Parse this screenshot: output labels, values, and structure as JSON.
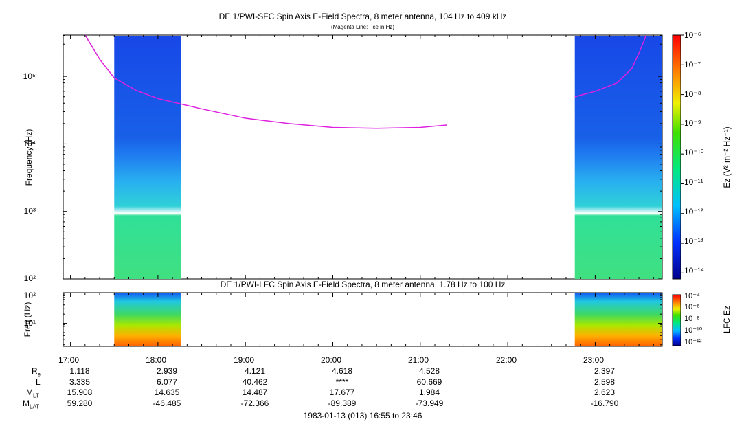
{
  "panel_top": {
    "title": "DE 1/PWI-SFC  Spin Axis E-Field Spectra, 8 meter antenna, 104 Hz to 409 kHz",
    "subtitle": "(Magenta Line: Fce in Hz)",
    "ylabel": "Frequency (Hz)",
    "yticks": [
      "10²",
      "10³",
      "10⁴",
      "10⁵"
    ],
    "colorbar_label": "Ez (V² m⁻² Hz⁻¹)",
    "colorbar_ticks": [
      "10⁻⁶",
      "10⁻⁷",
      "10⁻⁸",
      "10⁻⁹",
      "10⁻¹⁰",
      "10⁻¹¹",
      "10⁻¹²",
      "10⁻¹³",
      "10⁻¹⁴"
    ]
  },
  "panel_bottom": {
    "title": "DE 1/PWI-LFC  Spin Axis E-Field Spectra, 8 meter antenna, 1.78 Hz to 100 Hz",
    "ylabel": "Freq (Hz)",
    "yticks": [
      "10¹",
      "10²"
    ],
    "colorbar_label": "LFC Ez",
    "colorbar_ticks": [
      "10⁻⁴",
      "10⁻⁶",
      "10⁻⁸",
      "10⁻¹⁰",
      "10⁻¹²"
    ]
  },
  "colors": {
    "fce_line": "#e020e0",
    "background": "#ffffff"
  },
  "xaxis": {
    "ticks": [
      "17:00",
      "18:00",
      "19:00",
      "20:00",
      "21:00",
      "22:00",
      "23:00"
    ],
    "footer": "1983-01-13 (013) 16:55 to 23:46"
  },
  "ephemeris": {
    "labels": [
      "R",
      "L",
      "M",
      "M"
    ],
    "label_subs": [
      "e",
      "",
      "LT",
      "LAT"
    ],
    "rows": [
      [
        "1.118",
        "2.939",
        "4.121",
        "4.618",
        "4.528",
        "",
        "2.397"
      ],
      [
        "3.335",
        "6.077",
        "40.462",
        "****",
        "60.669",
        "",
        "2.598"
      ],
      [
        "15.908",
        "14.635",
        "14.487",
        "17.677",
        "1.984",
        "",
        "2.623"
      ],
      [
        "59.280",
        "-46.485",
        "-72.366",
        "-89.389",
        "-73.949",
        "",
        "-16.790"
      ]
    ]
  },
  "chart_data": [
    {
      "type": "heatmap",
      "title": "DE 1/PWI-SFC  Spin Axis E-Field Spectra, 8 meter antenna, 104 Hz to 409 kHz",
      "xlabel": "",
      "ylabel": "Frequency (Hz)",
      "xlim": [
        "16:55",
        "23:46"
      ],
      "ylim": [
        100,
        409000
      ],
      "yscale": "log",
      "colorbar_range": [
        "1e-14",
        "1e-6"
      ],
      "data_intervals": [
        [
          "17:30",
          "18:16"
        ],
        [
          "22:46",
          "23:46"
        ]
      ],
      "series": [
        {
          "type": "line",
          "x": [
            "17:10",
            "17:20",
            "17:30",
            "17:45",
            "18:00",
            "18:30",
            "19:00",
            "19:30",
            "20:00",
            "20:30",
            "21:00",
            "21:18"
          ],
          "y": [
            409000,
            180000,
            95000,
            62000,
            47000,
            33000,
            24000,
            20000,
            17500,
            17000,
            17500,
            19000
          ]
        },
        {
          "type": "line",
          "x": [
            "22:46",
            "23:00",
            "23:15",
            "23:25",
            "23:30",
            "23:35"
          ],
          "y": [
            50000,
            60000,
            80000,
            130000,
            220000,
            409000
          ]
        }
      ]
    },
    {
      "type": "heatmap",
      "title": "DE 1/PWI-LFC  Spin Axis E-Field Spectra, 8 meter antenna, 1.78 Hz to 100 Hz",
      "ylabel": "Freq (Hz)",
      "xlim": [
        "16:55",
        "23:46"
      ],
      "ylim": [
        1.78,
        100
      ],
      "yscale": "log",
      "colorbar_range": [
        "1e-12",
        "1e-4"
      ],
      "data_intervals": [
        [
          "17:30",
          "18:16"
        ],
        [
          "22:46",
          "23:46"
        ]
      ]
    }
  ]
}
